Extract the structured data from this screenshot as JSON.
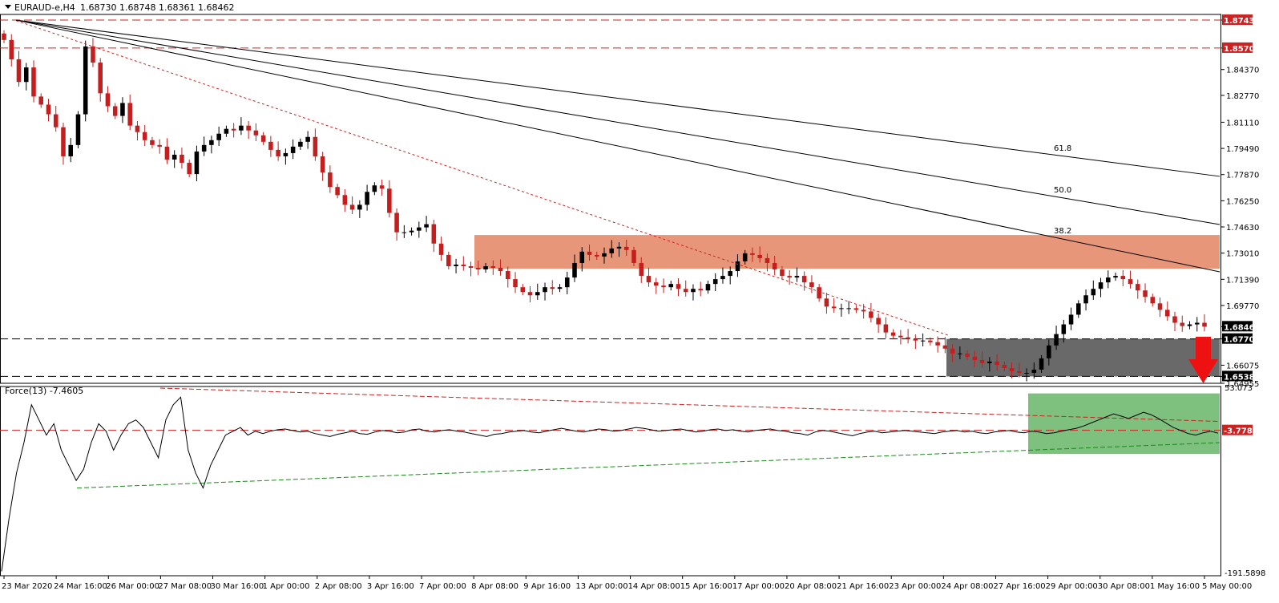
{
  "header": {
    "symbol": "EURAUD-e,H4",
    "ohlc": "1.68730 1.68748 1.68361 1.68462"
  },
  "colors": {
    "bull": "#000000",
    "bear": "#c41e1e",
    "resistance_zone": "#e8967a",
    "support_zone": "#696969",
    "force_zone": "#7ec07e",
    "level_line": "#cc2222",
    "trend_up": "#1a8a1a",
    "arrow": "#ee1111"
  },
  "chart_data": [
    {
      "type": "candlestick",
      "title": "EURAUD-e,H4 1.68730 1.68748 1.68361 1.68462",
      "x": [
        "23 Mar 2020",
        "24 Mar 16:00",
        "26 Mar 00:00",
        "27 Mar 08:00",
        "30 Mar 16:00",
        "1 Apr 00:00",
        "2 Apr 08:00",
        "3 Apr 16:00",
        "7 Apr 00:00",
        "8 Apr 08:00",
        "9 Apr 16:00",
        "13 Apr 00:00",
        "14 Apr 08:00",
        "15 Apr 16:00",
        "17 Apr 00:00",
        "20 Apr 08:00",
        "21 Apr 16:00",
        "23 Apr 00:00",
        "24 Apr 08:00",
        "27 Apr 16:00",
        "29 Apr 00:00",
        "30 Apr 08:00",
        "1 May 16:00",
        "5 May 00:00"
      ],
      "ylim": [
        1.64955,
        1.8778
      ],
      "ytick_labels": [
        "1.87430",
        "1.85700",
        "1.84370",
        "1.82770",
        "1.81110",
        "1.79490",
        "1.77870",
        "1.76250",
        "1.74630",
        "1.73010",
        "1.71390",
        "1.69770",
        "1.68462",
        "1.67700",
        "1.66075",
        "1.65380",
        "1.64955"
      ],
      "close_path": [
        1.862,
        1.85,
        1.836,
        1.845,
        1.827,
        1.822,
        1.816,
        1.808,
        1.79,
        1.797,
        1.816,
        1.858,
        1.848,
        1.829,
        1.821,
        1.815,
        1.823,
        1.809,
        1.805,
        1.8,
        1.797,
        1.796,
        1.788,
        1.791,
        1.786,
        1.779,
        1.793,
        1.797,
        1.8,
        1.804,
        1.807,
        1.806,
        1.809,
        1.806,
        1.803,
        1.799,
        1.794,
        1.79,
        1.792,
        1.796,
        1.799,
        1.802,
        1.79,
        1.78,
        1.771,
        1.766,
        1.76,
        1.757,
        1.76,
        1.768,
        1.772,
        1.77,
        1.755,
        1.743,
        1.743,
        1.744,
        1.746,
        1.748,
        1.736,
        1.729,
        1.722,
        1.723,
        1.722,
        1.721,
        1.72,
        1.722,
        1.721,
        1.719,
        1.714,
        1.709,
        1.706,
        1.704,
        1.706,
        1.709,
        1.708,
        1.709,
        1.715,
        1.724,
        1.731,
        1.729,
        1.728,
        1.73,
        1.733,
        1.734,
        1.732,
        1.724,
        1.716,
        1.712,
        1.71,
        1.709,
        1.711,
        1.708,
        1.706,
        1.708,
        1.707,
        1.711,
        1.714,
        1.716,
        1.719,
        1.725,
        1.73,
        1.729,
        1.727,
        1.724,
        1.72,
        1.716,
        1.715,
        1.716,
        1.712,
        1.709,
        1.702,
        1.697,
        1.696,
        1.696,
        1.696,
        1.695,
        1.694,
        1.69,
        1.686,
        1.681,
        1.679,
        1.678,
        1.677,
        1.676,
        1.676,
        1.675,
        1.673,
        1.671,
        1.668,
        1.668,
        1.666,
        1.664,
        1.662,
        1.663,
        1.661,
        1.659,
        1.657,
        1.656,
        1.656,
        1.658,
        1.665,
        1.673,
        1.68,
        1.686,
        1.692,
        1.699,
        1.704,
        1.708,
        1.712,
        1.715,
        1.716,
        1.714,
        1.711,
        1.707,
        1.703,
        1.699,
        1.695,
        1.691,
        1.687,
        1.685,
        1.686,
        1.687,
        1.6846
      ],
      "hlines": [
        {
          "value": 1.8743,
          "label": "1.87430"
        },
        {
          "value": 1.857,
          "label": "1.85700"
        },
        {
          "value": 1.677,
          "label": "1.67700"
        },
        {
          "value": 1.6538,
          "label": "1.65380"
        }
      ],
      "current_price_label": "1.68462",
      "resistance_zone": {
        "low": 1.7205,
        "high": 1.7413
      },
      "support_zone": {
        "low": 1.6538,
        "high": 1.677
      },
      "fib_fan": [
        {
          "label": "38.2",
          "end_value": 1.7185
        },
        {
          "label": "50.0",
          "end_value": 1.7478
        },
        {
          "label": "61.8",
          "end_value": 1.7776
        }
      ]
    },
    {
      "type": "line",
      "title": "Force(13) -7.4605",
      "ylim": [
        -191.5898,
        53.073
      ],
      "ytick_labels": [
        "53.073",
        "-3.7781",
        "-191.5898"
      ],
      "level_value": -3.7781,
      "level_label": "-3.7781",
      "values": [
        -190,
        -120,
        -60,
        -20,
        30,
        10,
        -10,
        5,
        -30,
        -50,
        -70,
        -55,
        -20,
        5,
        -5,
        -30,
        -10,
        5,
        10,
        0,
        -20,
        -40,
        10,
        30,
        40,
        -30,
        -60,
        -80,
        -50,
        -30,
        -10,
        -5,
        0,
        -10,
        -5,
        -8,
        -5,
        -3,
        -2,
        -4,
        -6,
        -5,
        -8,
        -10,
        -12,
        -9,
        -7,
        -5,
        -8,
        -9,
        -6,
        -4,
        -5,
        -7,
        -6,
        -3,
        -2,
        -5,
        -6,
        -4,
        -3,
        -5,
        -6,
        -8,
        -10,
        -12,
        -9,
        -8,
        -6,
        -5,
        -4,
        -6,
        -7,
        -5,
        -3,
        -1,
        -3,
        -5,
        -6,
        -4,
        -2,
        -3,
        -5,
        -4,
        -2,
        0,
        -1,
        -3,
        -5,
        -4,
        -3,
        -2,
        -4,
        -6,
        -5,
        -3,
        -2,
        -4,
        -3,
        -5,
        -6,
        -4,
        -3,
        -2,
        -4,
        -5,
        -7,
        -8,
        -10,
        -6,
        -4,
        -5,
        -7,
        -9,
        -11,
        -8,
        -6,
        -5,
        -7,
        -6,
        -5,
        -4,
        -5,
        -6,
        -7,
        -8,
        -6,
        -5,
        -4,
        -6,
        -5,
        -7,
        -8,
        -6,
        -5,
        -4,
        -6,
        -7,
        -5,
        -6,
        -8,
        -7,
        -5,
        -3,
        -1,
        2,
        6,
        10,
        14,
        18,
        15,
        12,
        16,
        20,
        17,
        12,
        6,
        0,
        -4,
        -8,
        -10,
        -7,
        -5,
        -7.4605
      ]
    }
  ],
  "xaxis_labels": [
    "23 Mar 2020",
    "24 Mar 16:00",
    "26 Mar 00:00",
    "27 Mar 08:00",
    "30 Mar 16:00",
    "1 Apr 00:00",
    "2 Apr 08:00",
    "3 Apr 16:00",
    "7 Apr 00:00",
    "8 Apr 08:00",
    "9 Apr 16:00",
    "13 Apr 00:00",
    "14 Apr 08:00",
    "15 Apr 16:00",
    "17 Apr 00:00",
    "20 Apr 08:00",
    "21 Apr 16:00",
    "23 Apr 00:00",
    "24 Apr 08:00",
    "27 Apr 16:00",
    "29 Apr 00:00",
    "30 Apr 08:00",
    "1 May 16:00",
    "5 May 00:00"
  ]
}
